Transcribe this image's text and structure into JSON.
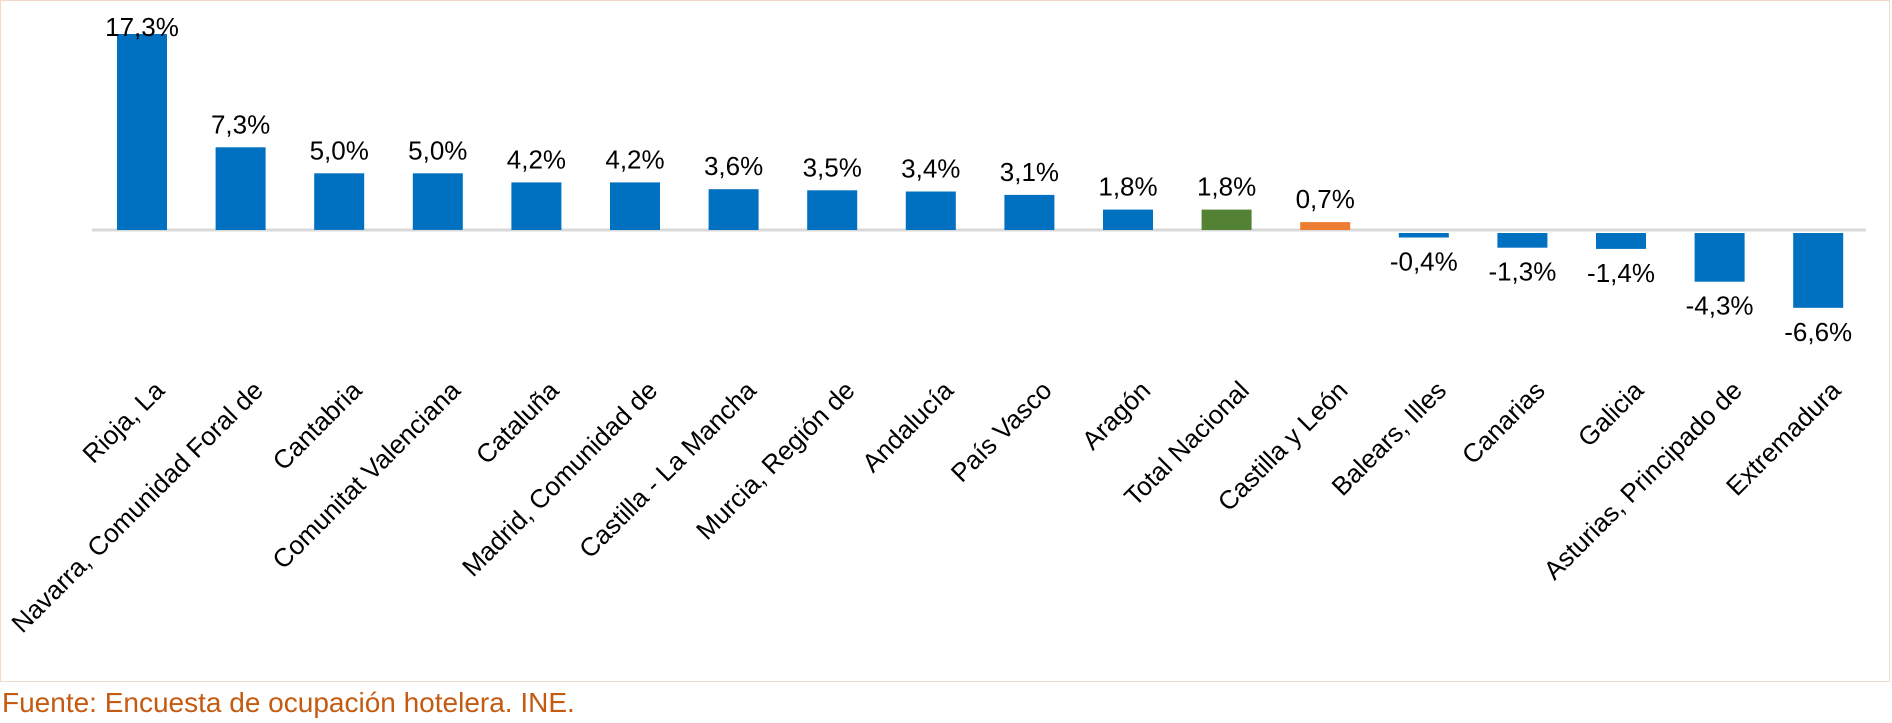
{
  "chart_data": {
    "type": "bar",
    "categories": [
      "Rioja, La",
      "Navarra, Comunidad Foral de",
      "Cantabria",
      "Comunitat Valenciana",
      "Cataluña",
      "Madrid, Comunidad de",
      "Castilla - La Mancha",
      "Murcia, Región de",
      "Andalucía",
      "País Vasco",
      "Aragón",
      "Total Nacional",
      "Castilla y León",
      "Balears, Illes",
      "Canarias",
      "Galicia",
      "Asturias, Principado de",
      "Extremadura"
    ],
    "values": [
      17.3,
      7.3,
      5.0,
      5.0,
      4.2,
      4.2,
      3.6,
      3.5,
      3.4,
      3.1,
      1.8,
      1.8,
      0.7,
      -0.4,
      -1.3,
      -1.4,
      -4.3,
      -6.6
    ],
    "data_labels": [
      "17,3%",
      "7,3%",
      "5,0%",
      "5,0%",
      "4,2%",
      "4,2%",
      "3,6%",
      "3,5%",
      "3,4%",
      "3,1%",
      "1,8%",
      "1,8%",
      "0,7%",
      "-0,4%",
      "-1,3%",
      "-1,4%",
      "-4,3%",
      "-6,6%"
    ],
    "bar_colors": [
      "#0070c0",
      "#0070c0",
      "#0070c0",
      "#0070c0",
      "#0070c0",
      "#0070c0",
      "#0070c0",
      "#0070c0",
      "#0070c0",
      "#0070c0",
      "#0070c0",
      "#548235",
      "#ed7d31",
      "#0070c0",
      "#0070c0",
      "#0070c0",
      "#0070c0",
      "#0070c0"
    ],
    "baseline_color": "#d9d9d9",
    "label_color": "#000000",
    "title": "",
    "xlabel": "",
    "ylabel": "",
    "ylim": [
      -6.6,
      17.3
    ],
    "grid": false,
    "legend": "none"
  },
  "footer": {
    "source": "Fuente: Encuesta de ocupación hotelera. INE.",
    "source_color": "#c55a11"
  }
}
